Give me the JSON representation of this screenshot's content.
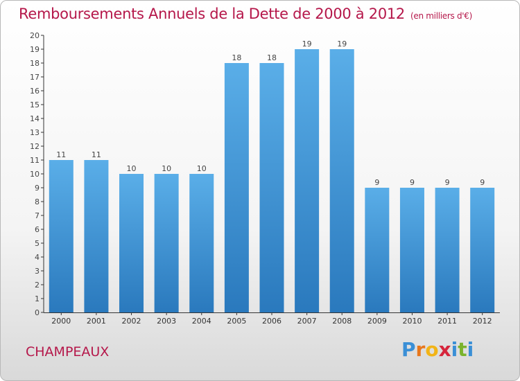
{
  "header": {
    "title": "Remboursements Annuels de la Dette de 2000 à 2012",
    "subtitle": "(en milliers d'€)"
  },
  "footer": {
    "commune": "CHAMPEAUX",
    "logo": {
      "letters": [
        "P",
        "r",
        "o",
        "x",
        "i",
        "t",
        "i"
      ],
      "colors": [
        "#3a8fd6",
        "#e8771c",
        "#f2b417",
        "#d6253c",
        "#3a8fd6",
        "#7ab32c",
        "#3a8fd6"
      ]
    }
  },
  "chart_data": {
    "type": "bar",
    "categories": [
      "2000",
      "2001",
      "2002",
      "2003",
      "2004",
      "2005",
      "2006",
      "2007",
      "2008",
      "2009",
      "2010",
      "2011",
      "2012"
    ],
    "series": [
      {
        "values": [
          11,
          11,
          10,
          10,
          10,
          18,
          18,
          19,
          19,
          9,
          9,
          9,
          9
        ]
      }
    ],
    "ylim": [
      0,
      20
    ],
    "yticks": [
      0,
      1,
      2,
      3,
      4,
      5,
      6,
      7,
      8,
      9,
      10,
      11,
      12,
      13,
      14,
      15,
      16,
      17,
      18,
      19,
      20
    ],
    "grid": false,
    "data_labels": true,
    "colors": {
      "bar_top": "#5aaee8",
      "bar_bottom": "#2a79bd",
      "axis": "#333333"
    }
  }
}
